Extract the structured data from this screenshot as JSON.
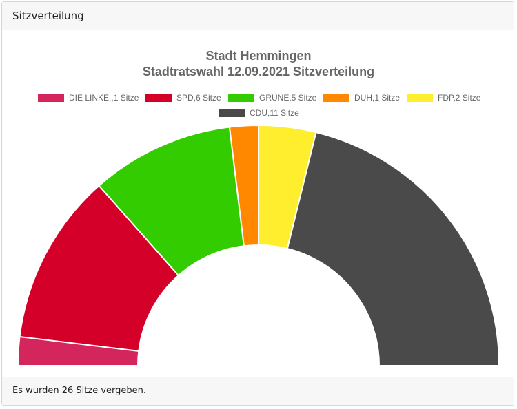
{
  "header": {
    "title": "Sitzverteilung"
  },
  "footer": {
    "text": "Es wurden 26 Sitze vergeben."
  },
  "chart_data": {
    "type": "pie",
    "subtype": "half-doughnut",
    "title": [
      "Stadt Hemmingen",
      "Stadtratswahl 12.09.2021 Sitzverteilung"
    ],
    "legend_position": "top",
    "series": [
      {
        "name": "DIE LINKE.",
        "label": "DIE LINKE.,1 Sitze",
        "value": 1,
        "color": "#d4255d"
      },
      {
        "name": "SPD",
        "label": "SPD,6 Sitze",
        "value": 6,
        "color": "#d4002a"
      },
      {
        "name": "GRÜNE",
        "label": "GRÜNE,5 Sitze",
        "value": 5,
        "color": "#33cc00"
      },
      {
        "name": "DUH",
        "label": "DUH,1 Sitze",
        "value": 1,
        "color": "#ff8800"
      },
      {
        "name": "FDP",
        "label": "FDP,2 Sitze",
        "value": 2,
        "color": "#ffee2e"
      },
      {
        "name": "CDU",
        "label": "CDU,11 Sitze",
        "value": 11,
        "color": "#4a4a4a"
      }
    ]
  }
}
